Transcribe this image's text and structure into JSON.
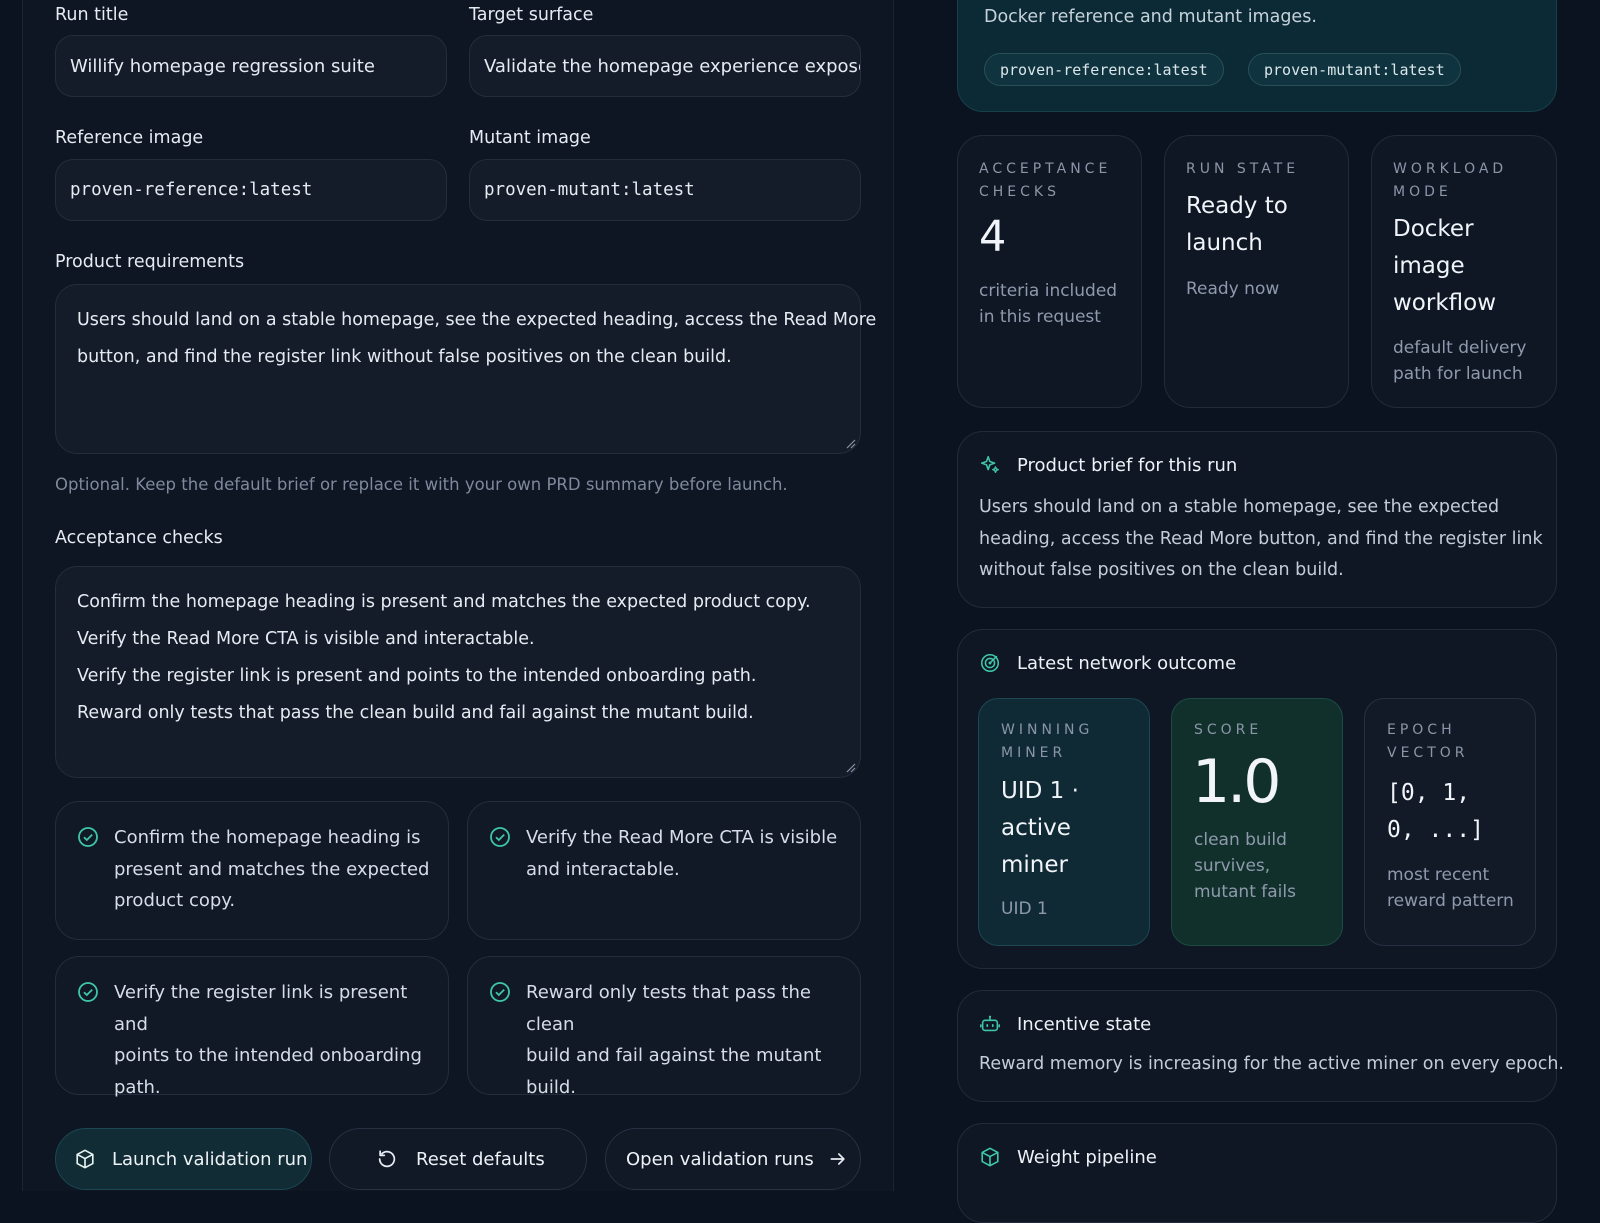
{
  "form": {
    "run_title_label": "Run title",
    "run_title_value": "Willify homepage regression suite",
    "target_surface_label": "Target surface",
    "target_surface_value": "Validate the homepage experience exposed",
    "reference_image_label": "Reference image",
    "reference_image_value": "proven-reference:latest",
    "mutant_image_label": "Mutant image",
    "mutant_image_value": "proven-mutant:latest",
    "requirements_label": "Product requirements",
    "requirements_lines": [
      "Users should land on a stable homepage, see the expected heading, access the Read More",
      "button, and find the register link without false positives on the clean build."
    ],
    "requirements_hint": "Optional. Keep the default brief or replace it with your own PRD summary before launch.",
    "checks_label": "Acceptance checks",
    "checks_lines": [
      "Confirm the homepage heading is present and matches the expected product copy.",
      "Verify the Read More CTA is visible and interactable.",
      "Verify the register link is present and points to the intended onboarding path.",
      "Reward only tests that pass the clean build and fail against the mutant build."
    ],
    "check_cards": [
      [
        "Confirm the homepage heading is",
        "present and matches the expected",
        "product copy."
      ],
      [
        "Verify the Read More CTA is visible",
        "and interactable."
      ],
      [
        "Verify the register link is present and",
        "points to the intended onboarding",
        "path."
      ],
      [
        "Reward only tests that pass the clean",
        "build and fail against the mutant",
        "build."
      ]
    ],
    "buttons": {
      "launch": "Launch validation run",
      "reset": "Reset defaults",
      "open": "Open validation runs"
    }
  },
  "summary": {
    "docker_text": "Docker reference and mutant images.",
    "chips": [
      "proven-reference:latest",
      "proven-mutant:latest"
    ],
    "acceptance": {
      "eyebrow": [
        "ACCEPTANCE",
        "CHECKS"
      ],
      "value": "4",
      "sub": [
        "criteria included",
        "in this request"
      ]
    },
    "run_state": {
      "eyebrow": [
        "RUN STATE"
      ],
      "title": [
        "Ready to",
        "launch"
      ],
      "sub": [
        "Ready now"
      ]
    },
    "workload": {
      "eyebrow": [
        "WORKLOAD",
        "MODE"
      ],
      "title": [
        "Docker",
        "image",
        "workflow"
      ],
      "sub": [
        "default delivery",
        "path for launch"
      ]
    }
  },
  "brief": {
    "title": "Product brief for this run",
    "lines": [
      "Users should land on a stable homepage, see the expected",
      "heading, access the Read More button, and find the register link",
      "without false positives on the clean build."
    ]
  },
  "network": {
    "title": "Latest network outcome",
    "winning_miner": {
      "eyebrow": [
        "WINNING",
        "MINER"
      ],
      "title": [
        "UID 1 ·",
        "active",
        "miner"
      ],
      "sub": "UID 1"
    },
    "score": {
      "eyebrow": [
        "SCORE"
      ],
      "value": "1.0",
      "sub": [
        "clean build",
        "survives,",
        "mutant fails"
      ]
    },
    "epoch_vector": {
      "eyebrow": [
        "EPOCH",
        "VECTOR"
      ],
      "value": [
        "[0, 1,",
        "0, ...]"
      ],
      "sub": [
        "most recent",
        "reward pattern"
      ]
    }
  },
  "incentive": {
    "title": "Incentive state",
    "text": "Reward memory is increasing for the active miner on every epoch."
  },
  "weights": {
    "title": "Weight pipeline"
  },
  "colors": {
    "accent": "#3fc6a8",
    "background": "#0b1320",
    "panel": "#0e1523",
    "hero": "#0c2a35"
  }
}
